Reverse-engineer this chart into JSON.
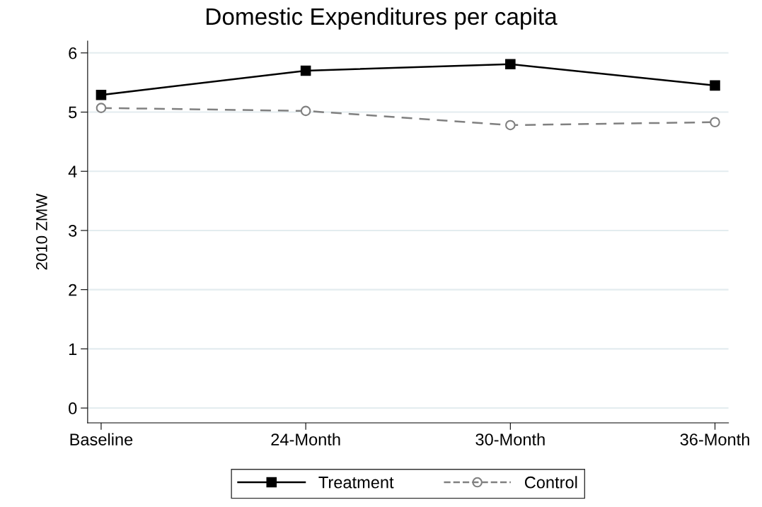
{
  "chart_data": {
    "type": "line",
    "title": "Domestic Expenditures per capita",
    "ylabel": "2010 ZMW",
    "categories": [
      "Baseline",
      "24-Month",
      "30-Month",
      "36-Month"
    ],
    "series": [
      {
        "name": "Treatment",
        "color": "#000000",
        "marker": "square",
        "line_style": "solid",
        "values": [
          5.29,
          5.7,
          5.81,
          5.45
        ]
      },
      {
        "name": "Control",
        "color": "#808080",
        "marker": "circle",
        "line_style": "dashed",
        "values": [
          5.07,
          5.02,
          4.78,
          4.83
        ]
      }
    ],
    "ylim": [
      -0.25,
      6.2
    ],
    "yticks": [
      0,
      1,
      2,
      3,
      4,
      5,
      6
    ],
    "grid": "y",
    "legend": "bottom"
  }
}
